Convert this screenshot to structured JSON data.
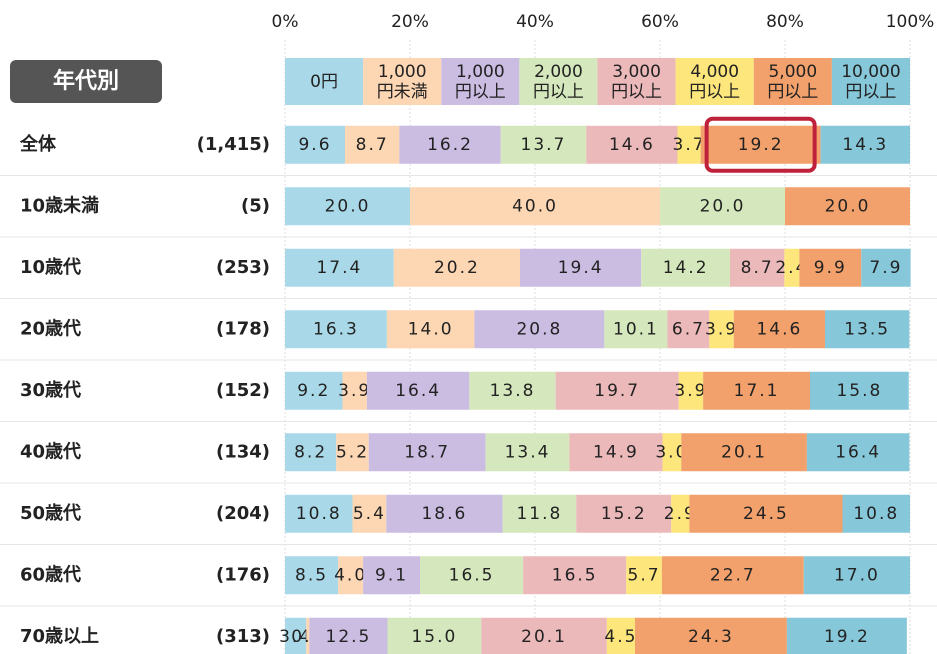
{
  "chart_data": {
    "type": "stacked_bar_horizontal",
    "group_label": "年代別",
    "categories": [
      "全体",
      "10歳未満",
      "10歳代",
      "20歳代",
      "30歳代",
      "40歳代",
      "50歳代",
      "60歳代",
      "70歳以上"
    ],
    "counts": [
      "(1,415)",
      "(5)",
      "(253)",
      "(178)",
      "(152)",
      "(134)",
      "(204)",
      "(176)",
      "(313)"
    ],
    "xlim": [
      0,
      100
    ],
    "xticks": [
      {
        "value": 0,
        "label": "0%"
      },
      {
        "value": 20,
        "label": "20%"
      },
      {
        "value": 40,
        "label": "40%"
      },
      {
        "value": 60,
        "label": "60%"
      },
      {
        "value": 80,
        "label": "80%"
      },
      {
        "value": 100,
        "label": "100%"
      }
    ],
    "grid": true,
    "series": [
      {
        "name": "0円",
        "color": "#a9d9e8",
        "values": [
          9.6,
          20.0,
          17.4,
          16.3,
          9.2,
          8.2,
          10.8,
          8.5,
          3.4
        ],
        "value_labels": [
          "9.6",
          "20.0",
          "17.4",
          "16.3",
          "9.2",
          "8.2",
          "10.8",
          "8.5",
          "3.4"
        ]
      },
      {
        "name": "1,000\n円未満",
        "color": "#fdd6b3",
        "values": [
          8.7,
          40.0,
          20.2,
          14.0,
          3.9,
          5.2,
          5.4,
          4.0,
          0.5
        ],
        "value_labels": [
          "8.7",
          "40.0",
          "20.2",
          "14.0",
          "3.9",
          "5.2",
          "5.4",
          "4.0",
          "0.5"
        ]
      },
      {
        "name": "1,000\n円以上",
        "color": "#cbbce2",
        "values": [
          16.2,
          null,
          19.4,
          20.8,
          16.4,
          18.7,
          18.6,
          9.1,
          12.5
        ],
        "value_labels": [
          "16.2",
          null,
          "19.4",
          "20.8",
          "16.4",
          "18.7",
          "18.6",
          "9.1",
          "12.5"
        ]
      },
      {
        "name": "2,000\n円以上",
        "color": "#d5e8bd",
        "values": [
          13.7,
          20.0,
          14.2,
          10.1,
          13.8,
          13.4,
          11.8,
          16.5,
          15.0
        ],
        "value_labels": [
          "13.7",
          "20.0",
          "14.2",
          "10.1",
          "13.8",
          "13.4",
          "11.8",
          "16.5",
          "15.0"
        ]
      },
      {
        "name": "3,000\n円以上",
        "color": "#ecb9bb",
        "values": [
          14.6,
          null,
          8.7,
          6.7,
          19.7,
          14.9,
          15.2,
          16.5,
          20.1
        ],
        "value_labels": [
          "14.6",
          null,
          "8.7",
          "6.7",
          "19.7",
          "14.9",
          "15.2",
          "16.5",
          "20.1"
        ]
      },
      {
        "name": "4,000\n円以上",
        "color": "#fde67c",
        "values": [
          3.7,
          null,
          2.4,
          3.9,
          3.9,
          3.0,
          2.9,
          5.7,
          4.5
        ],
        "value_labels": [
          "3.7",
          null,
          "2.4",
          "3.9",
          "3.9",
          "3.0",
          "2.9",
          "5.7",
          "4.5"
        ]
      },
      {
        "name": "5,000\n円以上",
        "color": "#f3a16c",
        "values": [
          19.2,
          20.0,
          9.9,
          14.6,
          17.1,
          20.1,
          24.5,
          22.7,
          24.3
        ],
        "value_labels": [
          "19.2",
          "20.0",
          "9.9",
          "14.6",
          "17.1",
          "20.1",
          "24.5",
          "22.7",
          "24.3"
        ]
      },
      {
        "name": "10,000\n円以上",
        "color": "#86c7d9",
        "values": [
          14.3,
          null,
          7.9,
          13.5,
          15.8,
          16.4,
          10.8,
          17.0,
          19.2
        ],
        "value_labels": [
          "14.3",
          null,
          "7.9",
          "13.5",
          "15.8",
          "16.4",
          "10.8",
          "17.0",
          "19.2"
        ]
      }
    ]
  }
}
